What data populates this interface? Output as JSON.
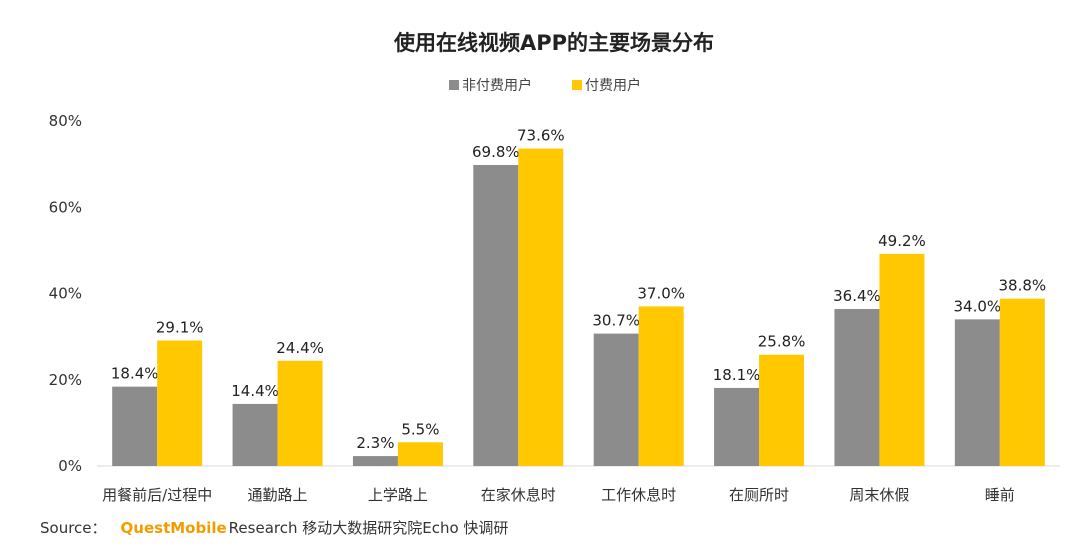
{
  "chart_data": {
    "type": "bar",
    "title": "使用在线视频APP的主要场景分布",
    "categories": [
      "用餐前后/过程中",
      "通勤路上",
      "上学路上",
      "在家休息时",
      "工作休息时",
      "在厕所时",
      "周末休假",
      "睡前"
    ],
    "series": [
      {
        "name": "非付费用户",
        "color": "#8c8c8c",
        "values": [
          18.4,
          14.4,
          2.3,
          69.8,
          30.7,
          18.1,
          36.4,
          34.0
        ]
      },
      {
        "name": "付费用户",
        "color": "#ffc800",
        "values": [
          29.1,
          24.4,
          5.5,
          73.6,
          37.0,
          25.8,
          49.2,
          38.8
        ]
      }
    ],
    "ylim": [
      0,
      80
    ],
    "yticks": [
      0,
      20,
      40,
      60,
      80
    ],
    "ytick_labels": [
      "0%",
      "20%",
      "40%",
      "60%",
      "80%"
    ],
    "value_suffix": "%",
    "legend": "top-center",
    "grid": false
  },
  "source": {
    "label": "Source：",
    "brand": "QuestMobile",
    "text": "Research 移动大数据研究院Echo 快调研"
  }
}
